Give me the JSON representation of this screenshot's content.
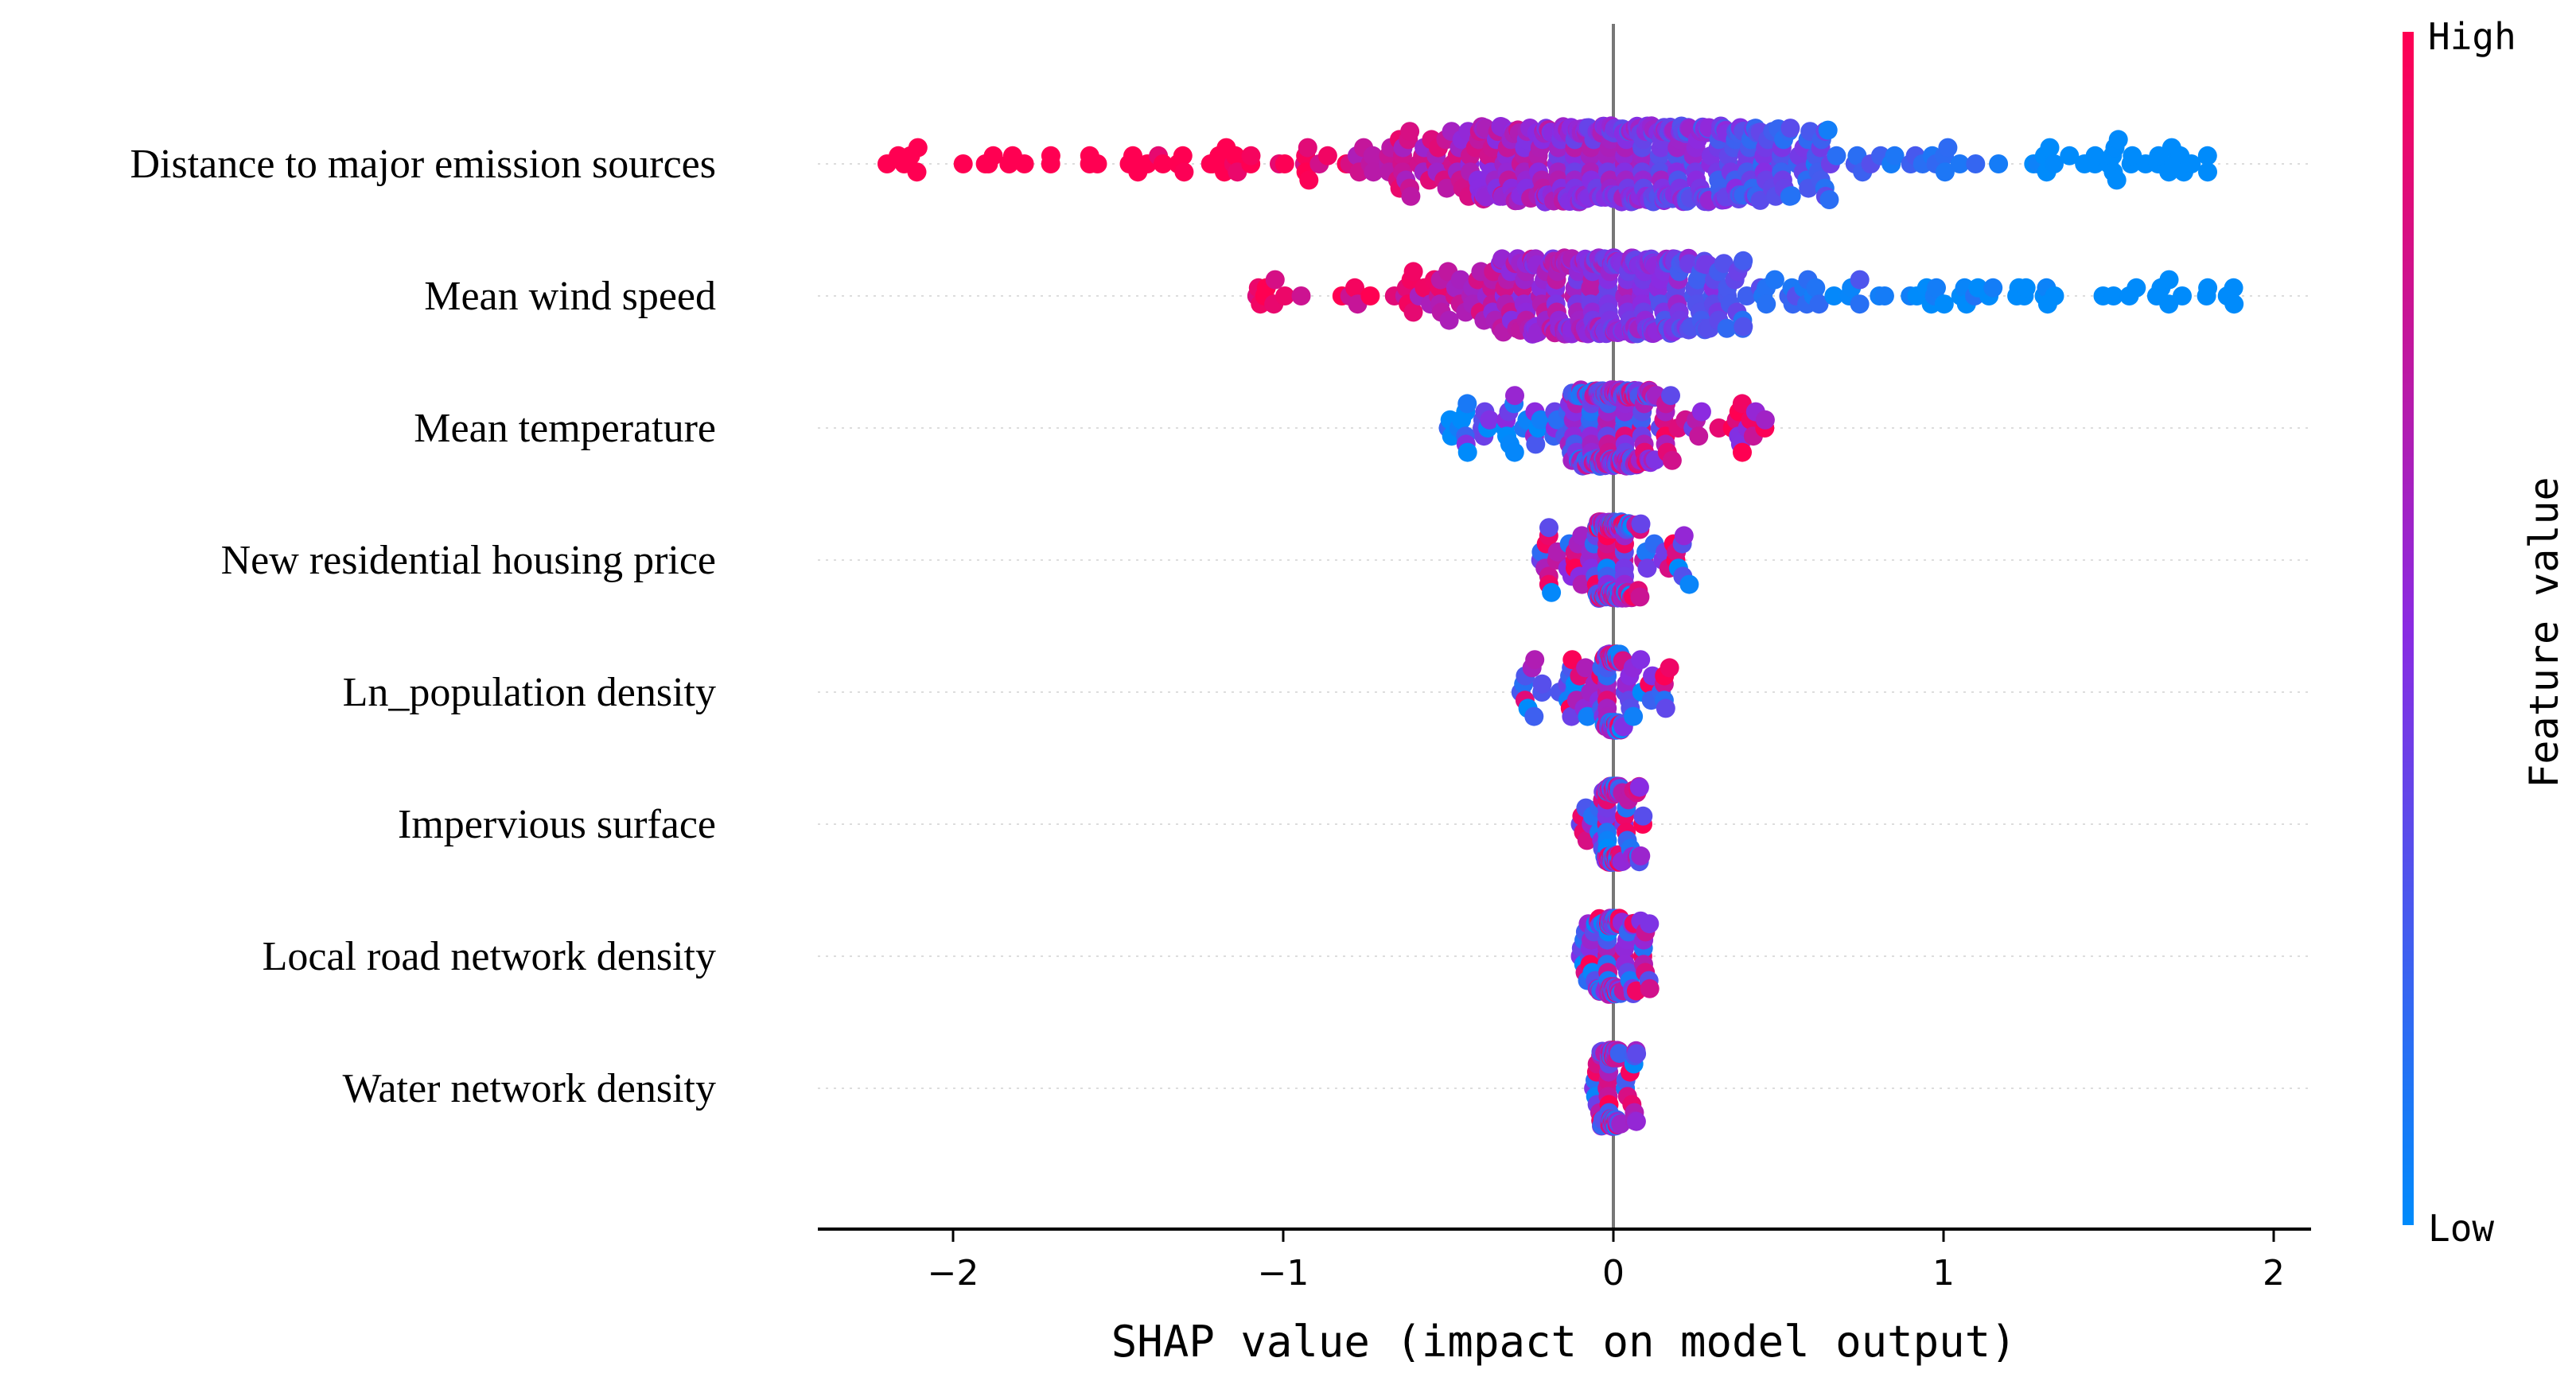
{
  "chart_data": {
    "type": "scatter",
    "subtype": "shap-beeswarm",
    "title": "",
    "xlabel": "SHAP value (impact on model output)",
    "xlim": [
      -2.4,
      2.1
    ],
    "xticks": [
      -2,
      -1,
      0,
      1,
      2
    ],
    "xtick_labels": [
      "−2",
      "−1",
      "0",
      "1",
      "2"
    ],
    "zero_line": true,
    "grid": false,
    "colorbar": {
      "title": "Feature value",
      "high_label": "High",
      "low_label": "Low",
      "high_color": "#ff0052",
      "mid_color": "#8a2be2",
      "low_color": "#008bfb"
    },
    "features": [
      {
        "name": "Distance to major emission sources",
        "min": -2.2,
        "max": 1.8,
        "spread": 0.9,
        "trend": -1,
        "n": 520
      },
      {
        "name": "Mean wind speed",
        "min": -1.08,
        "max": 1.88,
        "spread": 0.55,
        "trend": -1,
        "n": 420
      },
      {
        "name": "Mean temperature",
        "min": -0.5,
        "max": 0.46,
        "spread": 0.16,
        "trend": 1,
        "n": 320
      },
      {
        "name": "New residential housing price",
        "min": -0.22,
        "max": 0.23,
        "spread": 0.06,
        "trend": 0,
        "n": 240
      },
      {
        "name": "Ln_population density",
        "min": -0.28,
        "max": 0.17,
        "spread": 0.04,
        "trend": 0,
        "n": 190
      },
      {
        "name": "Impervious surface",
        "min": -0.1,
        "max": 0.09,
        "spread": 0.03,
        "trend": 0,
        "n": 170
      },
      {
        "name": "Local road network density",
        "min": -0.1,
        "max": 0.11,
        "spread": 0.025,
        "trend": 0,
        "n": 170
      },
      {
        "name": "Water network density",
        "min": -0.06,
        "max": 0.07,
        "spread": 0.02,
        "trend": 0,
        "n": 160
      }
    ]
  }
}
